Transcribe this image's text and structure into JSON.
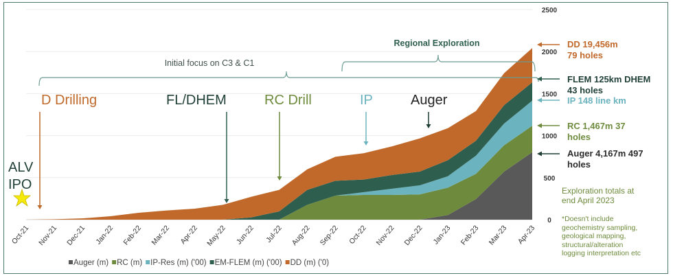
{
  "chart_data": {
    "type": "area",
    "stacked": true,
    "title": "",
    "xlabel": "",
    "ylabel": "",
    "ylim": [
      0,
      2500
    ],
    "yticks": [
      0,
      500,
      1000,
      1500,
      2000,
      2500
    ],
    "grid": true,
    "legend_position": "bottom",
    "categories": [
      "Oct-21",
      "Nov-21",
      "Dec-21",
      "Jan-22",
      "Feb-22",
      "Mar-22",
      "Apr-22",
      "May-22",
      "Jun-22",
      "Jul-22",
      "Aug-22",
      "Sep-22",
      "Oct-22",
      "Nov-22",
      "Dec-22",
      "Jan-23",
      "Feb-23",
      "Mar-23",
      "Apr-23"
    ],
    "series": [
      {
        "name": "Auger (m)",
        "color": "#595959",
        "values": [
          0,
          0,
          0,
          0,
          0,
          0,
          0,
          0,
          0,
          0,
          0,
          0,
          0,
          0,
          0,
          55,
          245,
          572,
          803
        ]
      },
      {
        "name": "RC (m)",
        "color": "#6e8b3d",
        "values": [
          0,
          0,
          0,
          0,
          0,
          0,
          0,
          0,
          0,
          0,
          177,
          286,
          294,
          294,
          300,
          326,
          300,
          313,
          314
        ]
      },
      {
        "name": "IP-Res (m) ('00)",
        "color": "#6bb3be",
        "values": [
          0,
          0,
          0,
          0,
          0,
          0,
          0,
          0,
          0,
          0,
          0,
          0,
          33,
          74,
          108,
          136,
          217,
          259,
          299
        ]
      },
      {
        "name": "EM-FLEM (m) ('00)",
        "color": "#2e5e4e",
        "values": [
          0,
          0,
          0,
          0,
          0,
          0,
          0,
          0,
          27,
          98,
          177,
          177,
          150,
          163,
          164,
          191,
          178,
          218,
          218
        ]
      },
      {
        "name": "DD (m) ('0)",
        "color": "#c0692a",
        "values": [
          0,
          5,
          15,
          41,
          82,
          109,
          131,
          177,
          245,
          256,
          245,
          286,
          313,
          340,
          395,
          381,
          353,
          381,
          408
        ]
      }
    ],
    "annotations": {
      "ipo": [
        "ALV",
        "IPO"
      ],
      "d_drilling": "D Drilling",
      "fl_dhem": "FL/DHEM",
      "rc_drill": "RC Drill",
      "ip": "IP",
      "auger": "Auger",
      "initial_focus": "Initial focus on C3 & C1",
      "regional": "Regional Exploration"
    },
    "totals": {
      "dd": [
        "DD 19,456m",
        "79 holes"
      ],
      "flem": [
        "FLEM 125km DHEM",
        "43 holes"
      ],
      "ip": "IP 148 line km",
      "rc": [
        "RC 1,467m 37",
        "holes"
      ],
      "auger": [
        "Auger 4,167m 497",
        "holes"
      ],
      "summary": [
        "Exploration totals at",
        "end April 2023"
      ],
      "footnote": [
        "*Doesn't include",
        "geochemistry sampling,",
        "geological mapping,",
        "structural/alteration",
        "logging interpretation etc"
      ]
    }
  }
}
